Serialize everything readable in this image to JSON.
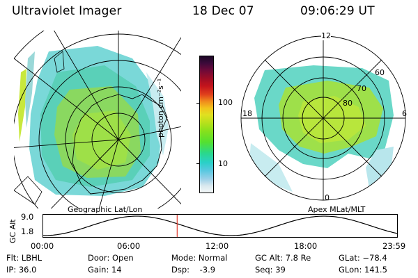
{
  "header": {
    "instrument": "Ultraviolet Imager",
    "date": "18 Dec 07",
    "time": "09:06:29 UT"
  },
  "left_panel": {
    "caption": "Geographic Lat/Lon"
  },
  "right_panel": {
    "caption": "Apex MLat/MLT",
    "mlt_labels": {
      "top": "12",
      "left": "18",
      "right": "6",
      "bottom": "0"
    },
    "lat_labels": [
      "60",
      "70",
      "80"
    ]
  },
  "colorbar": {
    "unit_label": "photon cm⁻²s⁻¹",
    "ticks": [
      "100",
      "10"
    ],
    "colors": [
      "#1b0826",
      "#3c0a3a",
      "#6b0a3a",
      "#9c0d26",
      "#c4141c",
      "#e0401c",
      "#f08a1c",
      "#f2c41c",
      "#e0e020",
      "#b6e01c",
      "#86e01c",
      "#54e030",
      "#2ad88a",
      "#2ad0c8",
      "#5ac8e0",
      "#9ad0e8",
      "#d8e8ee",
      "#f4f8f8"
    ]
  },
  "altitude_plot": {
    "ylabel": "GC Alt",
    "yticks": [
      "9.0",
      "1.8"
    ],
    "xticks": [
      "00:00",
      "06:00",
      "12:00",
      "18:00",
      "23:59"
    ],
    "current_time_fraction": 0.379
  },
  "status": {
    "flt": "Flt: LBHL",
    "ip": "IP: 36.0",
    "door": "Door: Open",
    "gain": "Gain: 14",
    "mode": "Mode: Normal",
    "dsp": "Dsp:    -3.9",
    "gcalt": "GC Alt: 7.8 Re",
    "seq": "Seq: 39",
    "glat": "GLat: −78.4",
    "glon": "GLon: 141.5"
  }
}
